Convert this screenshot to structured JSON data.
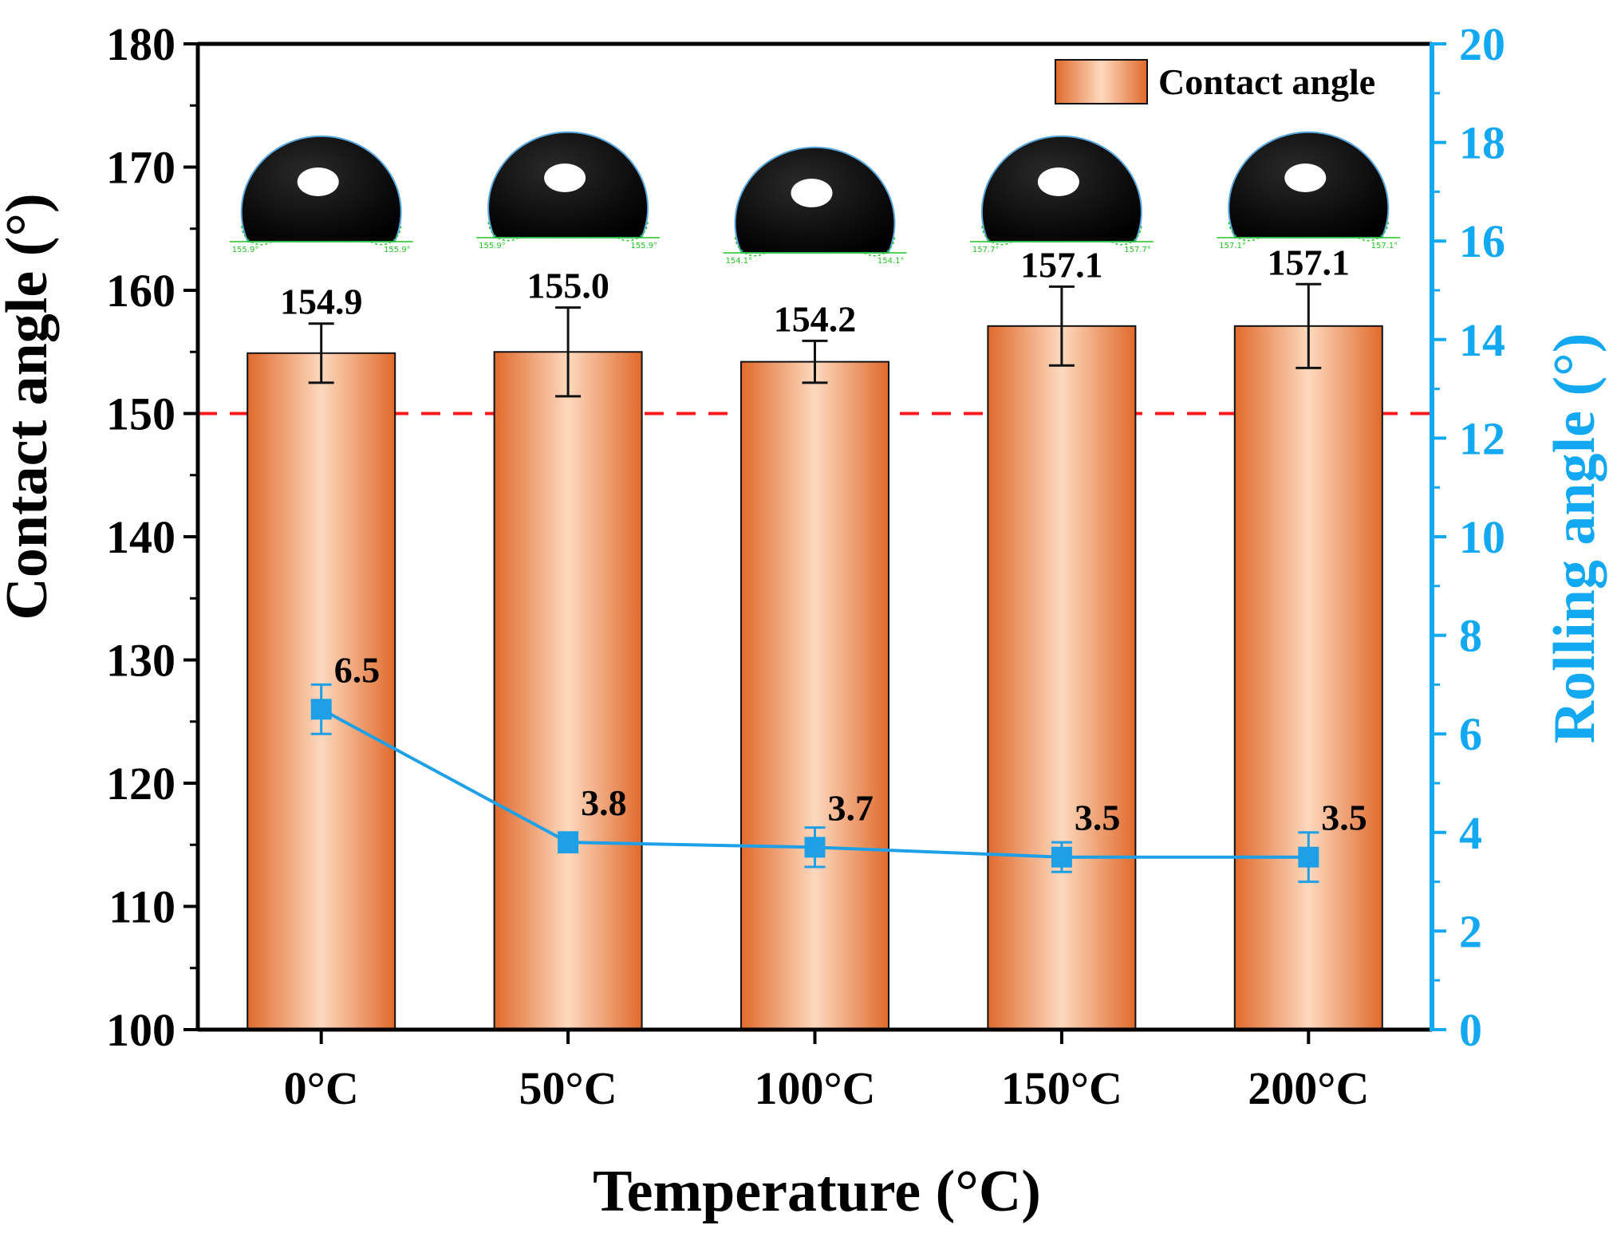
{
  "chart_data": {
    "type": "bar",
    "title": "",
    "xlabel": "Temperature (°C)",
    "ylabel": "Contact angle (°)",
    "y2label": "Rolling angle (°)",
    "categories": [
      "0°C",
      "50°C",
      "100°C",
      "150°C",
      "200°C"
    ],
    "ylim": [
      100,
      180
    ],
    "yticks": [
      "100",
      "110",
      "120",
      "130",
      "140",
      "150",
      "160",
      "170",
      "180"
    ],
    "y2lim": [
      0,
      20
    ],
    "y2ticks": [
      "0",
      "2",
      "4",
      "6",
      "8",
      "10",
      "12",
      "14",
      "16",
      "18",
      "20"
    ],
    "reference_line": {
      "value": 150,
      "color": "#ff1a1a",
      "style": "dashed"
    },
    "legend": {
      "label": "Contact angle",
      "placement": "top-right"
    },
    "series": [
      {
        "name": "Contact angle",
        "type": "bar",
        "axis": "left",
        "values": [
          154.9,
          155.0,
          154.2,
          157.1,
          157.1
        ],
        "labels": [
          "154.9",
          "155.0",
          "154.2",
          "157.1",
          "157.1"
        ],
        "errors": [
          2.4,
          3.6,
          1.7,
          3.2,
          3.4
        ]
      },
      {
        "name": "Rolling angle",
        "type": "line",
        "axis": "right",
        "values": [
          6.5,
          3.8,
          3.7,
          3.5,
          3.5
        ],
        "labels": [
          "6.5",
          "3.8",
          "3.7",
          "3.5",
          "3.5"
        ],
        "errors": [
          0.5,
          0.2,
          0.4,
          0.3,
          0.5
        ]
      }
    ],
    "inset_images": [
      {
        "category": "0°C",
        "left_angle": "155.9°",
        "right_angle": "155.9°"
      },
      {
        "category": "50°C",
        "left_angle": "155.9°",
        "right_angle": "155.9°"
      },
      {
        "category": "100°C",
        "left_angle": "154.1°",
        "right_angle": "154.1°"
      },
      {
        "category": "150°C",
        "left_angle": "157.7°",
        "right_angle": "157.7°"
      },
      {
        "category": "200°C",
        "left_angle": "157.1°",
        "right_angle": "157.1°"
      }
    ],
    "colors": {
      "bar_edge": "#e06a2c",
      "bar_center": "#fdd9be",
      "line": "#1e9fe6",
      "right_axis": "#13a9f2",
      "reference": "#ff1a1a",
      "angle_marks": "#22c422"
    }
  }
}
